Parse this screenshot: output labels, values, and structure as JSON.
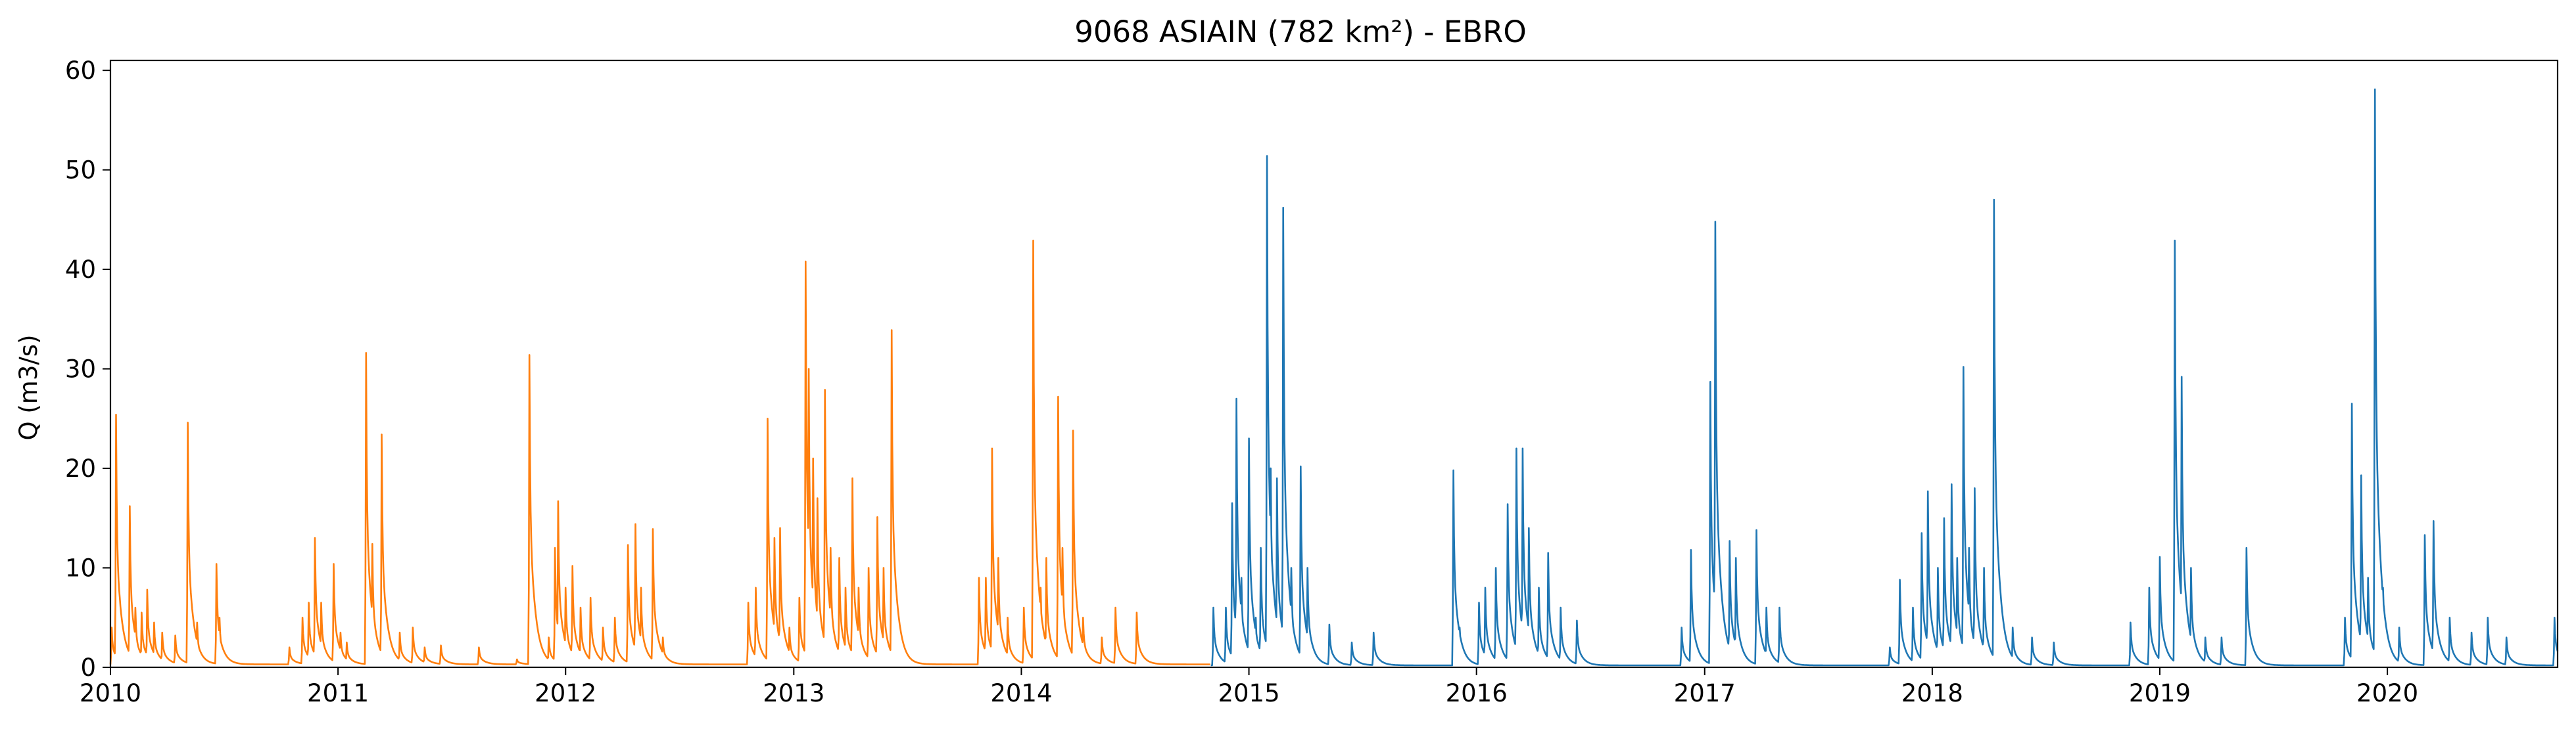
{
  "chart_data": {
    "type": "line",
    "title": "9068 ASIAIN (782 km²) - EBRO",
    "xlabel": "",
    "ylabel": "Q (m3/s)",
    "xlim": [
      "2010-01-01",
      "2020-09-30"
    ],
    "ylim": [
      0,
      61
    ],
    "x_ticks": [
      "2010",
      "2011",
      "2012",
      "2013",
      "2014",
      "2015",
      "2016",
      "2017",
      "2018",
      "2019",
      "2020"
    ],
    "y_ticks": [
      0,
      10,
      20,
      30,
      40,
      50,
      60
    ],
    "grid": false,
    "legend": "none",
    "series": [
      {
        "color": "#ff7f0e",
        "baseflow": 0.3,
        "date_range": [
          "2010-01-01",
          "2014-10-31"
        ],
        "peaks": [
          [
            "2010-01-03",
            4
          ],
          [
            "2010-01-10",
            25.4
          ],
          [
            "2010-01-16",
            7
          ],
          [
            "2010-02-01",
            16.2
          ],
          [
            "2010-02-10",
            6
          ],
          [
            "2010-02-20",
            5.5
          ],
          [
            "2010-03-01",
            7.8
          ],
          [
            "2010-03-12",
            4.5
          ],
          [
            "2010-03-25",
            3.5
          ],
          [
            "2010-04-15",
            3.2
          ],
          [
            "2010-05-05",
            24.6
          ],
          [
            "2010-05-12",
            5.5
          ],
          [
            "2010-05-20",
            4.5
          ],
          [
            "2010-06-20",
            10.4
          ],
          [
            "2010-06-25",
            5
          ],
          [
            "2010-10-15",
            2
          ],
          [
            "2010-11-05",
            5
          ],
          [
            "2010-11-15",
            6.5
          ],
          [
            "2010-11-25",
            13
          ],
          [
            "2010-12-05",
            6.5
          ],
          [
            "2010-12-25",
            10.4
          ],
          [
            "2011-01-05",
            3.5
          ],
          [
            "2011-01-15",
            2.5
          ],
          [
            "2011-02-15",
            31.6
          ],
          [
            "2011-02-25",
            12.4
          ],
          [
            "2011-03-12",
            23.4
          ],
          [
            "2011-03-20",
            4
          ],
          [
            "2011-04-10",
            3.5
          ],
          [
            "2011-05-01",
            4
          ],
          [
            "2011-05-20",
            2
          ],
          [
            "2011-06-15",
            2.2
          ],
          [
            "2011-08-15",
            2
          ],
          [
            "2011-10-15",
            0.8
          ],
          [
            "2011-11-04",
            31.4
          ],
          [
            "2011-11-10",
            6
          ],
          [
            "2011-12-05",
            3
          ],
          [
            "2011-12-15",
            12
          ],
          [
            "2011-12-20",
            16.7
          ],
          [
            "2012-01-01",
            8
          ],
          [
            "2012-01-12",
            10.2
          ],
          [
            "2012-01-25",
            6
          ],
          [
            "2012-02-10",
            7
          ],
          [
            "2012-03-01",
            4
          ],
          [
            "2012-03-20",
            5
          ],
          [
            "2012-04-10",
            12.3
          ],
          [
            "2012-04-22",
            14.4
          ],
          [
            "2012-05-01",
            8
          ],
          [
            "2012-05-20",
            13.9
          ],
          [
            "2012-06-05",
            3
          ],
          [
            "2012-10-20",
            6.5
          ],
          [
            "2012-11-01",
            8
          ],
          [
            "2012-11-20",
            25
          ],
          [
            "2012-12-01",
            13
          ],
          [
            "2012-12-10",
            14
          ],
          [
            "2012-12-25",
            4
          ],
          [
            "2013-01-10",
            7
          ],
          [
            "2013-01-20",
            40.8
          ],
          [
            "2013-01-25",
            30
          ],
          [
            "2013-02-01",
            21
          ],
          [
            "2013-02-08",
            17
          ],
          [
            "2013-02-20",
            27.9
          ],
          [
            "2013-03-01",
            12
          ],
          [
            "2013-03-15",
            11
          ],
          [
            "2013-03-25",
            8
          ],
          [
            "2013-04-05",
            19
          ],
          [
            "2013-04-15",
            8
          ],
          [
            "2013-05-01",
            10
          ],
          [
            "2013-05-15",
            15.1
          ],
          [
            "2013-05-25",
            10
          ],
          [
            "2013-06-07",
            33.9
          ],
          [
            "2013-06-20",
            4
          ],
          [
            "2013-10-25",
            9
          ],
          [
            "2013-11-05",
            9
          ],
          [
            "2013-11-15",
            22
          ],
          [
            "2013-11-25",
            11
          ],
          [
            "2013-12-10",
            5
          ],
          [
            "2014-01-05",
            6
          ],
          [
            "2014-01-20",
            42.9
          ],
          [
            "2014-02-01",
            8
          ],
          [
            "2014-02-10",
            11
          ],
          [
            "2014-03-01",
            27.2
          ],
          [
            "2014-03-08",
            12
          ],
          [
            "2014-03-25",
            23.8
          ],
          [
            "2014-04-10",
            5
          ],
          [
            "2014-05-10",
            3
          ],
          [
            "2014-06-01",
            6
          ],
          [
            "2014-07-05",
            5.5
          ]
        ]
      },
      {
        "color": "#1f77b4",
        "baseflow": 0.2,
        "date_range": [
          "2014-11-01",
          "2020-09-30"
        ],
        "peaks": [
          [
            "2014-11-05",
            6
          ],
          [
            "2014-11-25",
            6
          ],
          [
            "2014-12-05",
            16.5
          ],
          [
            "2014-12-12",
            27
          ],
          [
            "2014-12-20",
            9
          ],
          [
            "2015-01-01",
            23
          ],
          [
            "2015-01-12",
            5
          ],
          [
            "2015-01-20",
            12
          ],
          [
            "2015-01-30",
            51.4
          ],
          [
            "2015-02-05",
            20
          ],
          [
            "2015-02-15",
            19
          ],
          [
            "2015-02-25",
            46.2
          ],
          [
            "2015-03-10",
            10
          ],
          [
            "2015-03-25",
            20.2
          ],
          [
            "2015-04-05",
            10
          ],
          [
            "2015-05-10",
            4.3
          ],
          [
            "2015-06-15",
            2.5
          ],
          [
            "2015-07-20",
            3.5
          ],
          [
            "2015-11-25",
            19.8
          ],
          [
            "2015-12-05",
            4
          ],
          [
            "2016-01-05",
            6.5
          ],
          [
            "2016-01-15",
            8
          ],
          [
            "2016-02-01",
            10
          ],
          [
            "2016-02-20",
            16.4
          ],
          [
            "2016-03-05",
            22
          ],
          [
            "2016-03-15",
            22
          ],
          [
            "2016-03-25",
            14
          ],
          [
            "2016-04-10",
            8
          ],
          [
            "2016-04-25",
            11.5
          ],
          [
            "2016-05-15",
            6
          ],
          [
            "2016-06-10",
            4.7
          ],
          [
            "2016-11-25",
            4
          ],
          [
            "2016-12-10",
            11.8
          ],
          [
            "2017-01-10",
            28.7
          ],
          [
            "2017-01-18",
            44.8
          ],
          [
            "2017-02-10",
            12.7
          ],
          [
            "2017-02-20",
            11
          ],
          [
            "2017-03-25",
            13.8
          ],
          [
            "2017-04-10",
            6
          ],
          [
            "2017-05-01",
            6
          ],
          [
            "2017-10-25",
            2
          ],
          [
            "2017-11-10",
            8.8
          ],
          [
            "2017-12-01",
            6
          ],
          [
            "2017-12-15",
            13.5
          ],
          [
            "2017-12-25",
            17.7
          ],
          [
            "2018-01-10",
            10
          ],
          [
            "2018-01-20",
            15
          ],
          [
            "2018-02-01",
            18.4
          ],
          [
            "2018-02-10",
            11
          ],
          [
            "2018-02-20",
            30.2
          ],
          [
            "2018-03-01",
            12
          ],
          [
            "2018-03-10",
            18
          ],
          [
            "2018-03-25",
            10
          ],
          [
            "2018-04-10",
            47
          ],
          [
            "2018-04-20",
            8
          ],
          [
            "2018-05-10",
            4
          ],
          [
            "2018-06-10",
            3
          ],
          [
            "2018-07-15",
            2.5
          ],
          [
            "2018-11-15",
            4.5
          ],
          [
            "2018-12-15",
            8
          ],
          [
            "2019-01-01",
            11.1
          ],
          [
            "2019-01-25",
            42.9
          ],
          [
            "2019-02-05",
            29.2
          ],
          [
            "2019-02-20",
            10
          ],
          [
            "2019-03-15",
            3
          ],
          [
            "2019-04-10",
            3
          ],
          [
            "2019-05-20",
            12
          ],
          [
            "2019-10-25",
            5
          ],
          [
            "2019-11-05",
            26.5
          ],
          [
            "2019-11-20",
            19.3
          ],
          [
            "2019-12-01",
            9
          ],
          [
            "2019-12-12",
            58.1
          ],
          [
            "2019-12-25",
            8
          ],
          [
            "2020-01-20",
            4
          ],
          [
            "2020-03-01",
            13.3
          ],
          [
            "2020-03-15",
            14.7
          ],
          [
            "2020-04-10",
            5
          ],
          [
            "2020-05-15",
            3.5
          ],
          [
            "2020-06-10",
            5
          ],
          [
            "2020-07-10",
            3
          ],
          [
            "2020-09-25",
            5
          ]
        ]
      }
    ]
  }
}
